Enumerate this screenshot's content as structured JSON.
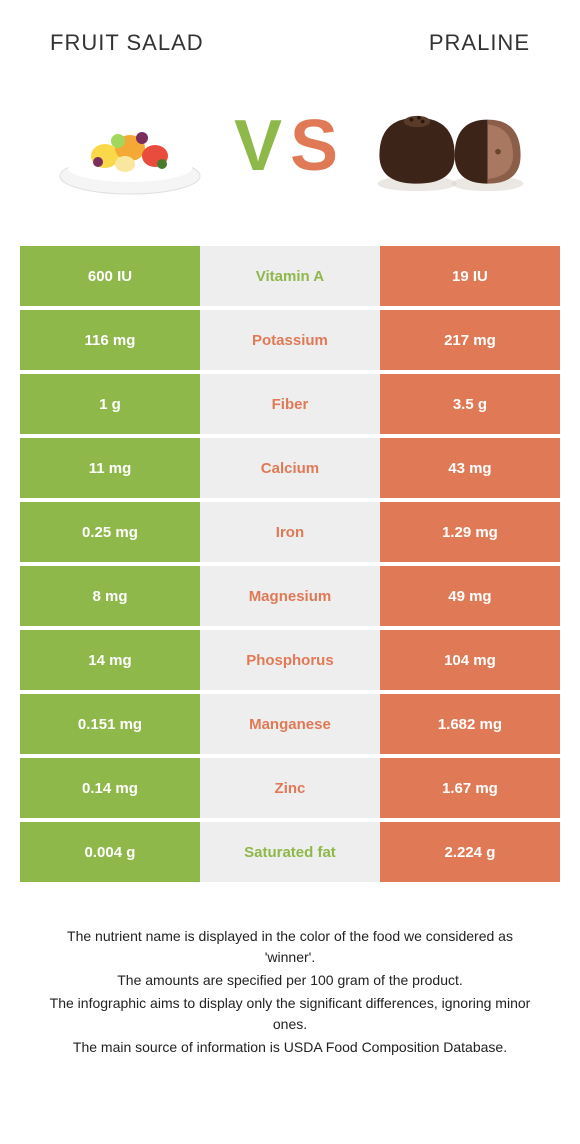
{
  "colors": {
    "green": "#8fb84a",
    "orange": "#e07a56",
    "mid_bg": "#eeeeee",
    "text": "#333333",
    "white": "#ffffff"
  },
  "header": {
    "left_title": "Fruit salad",
    "right_title": "Praline"
  },
  "vs": {
    "v": "V",
    "s": "S"
  },
  "rows": [
    {
      "left": "600 IU",
      "mid": "Vitamin A",
      "right": "19 IU",
      "winner": "left"
    },
    {
      "left": "116 mg",
      "mid": "Potassium",
      "right": "217 mg",
      "winner": "right"
    },
    {
      "left": "1 g",
      "mid": "Fiber",
      "right": "3.5 g",
      "winner": "right"
    },
    {
      "left": "11 mg",
      "mid": "Calcium",
      "right": "43 mg",
      "winner": "right"
    },
    {
      "left": "0.25 mg",
      "mid": "Iron",
      "right": "1.29 mg",
      "winner": "right"
    },
    {
      "left": "8 mg",
      "mid": "Magnesium",
      "right": "49 mg",
      "winner": "right"
    },
    {
      "left": "14 mg",
      "mid": "Phosphorus",
      "right": "104 mg",
      "winner": "right"
    },
    {
      "left": "0.151 mg",
      "mid": "Manganese",
      "right": "1.682 mg",
      "winner": "right"
    },
    {
      "left": "0.14 mg",
      "mid": "Zinc",
      "right": "1.67 mg",
      "winner": "right"
    },
    {
      "left": "0.004 g",
      "mid": "Saturated fat",
      "right": "2.224 g",
      "winner": "left"
    }
  ],
  "footnotes": [
    "The nutrient name is displayed in the color of the food we considered as 'winner'.",
    "The amounts are specified per 100 gram of the product.",
    "The infographic aims to display only the significant differences, ignoring minor ones.",
    "The main source of information is USDA Food Composition Database."
  ]
}
